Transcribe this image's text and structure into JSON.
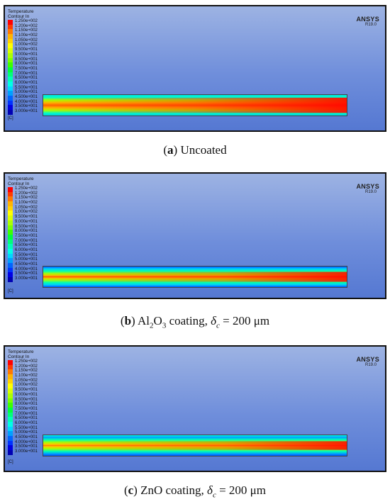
{
  "legend": {
    "title_line1": "Temperature",
    "title_line2": "Contour In",
    "unit": "[C]",
    "levels": [
      "1.250e+002",
      "1.200e+002",
      "1.150e+002",
      "1.100e+002",
      "1.050e+002",
      "1.000e+002",
      "9.500e+001",
      "9.000e+001",
      "8.500e+001",
      "8.000e+001",
      "7.500e+001",
      "7.000e+001",
      "6.500e+001",
      "6.000e+001",
      "5.500e+001",
      "5.000e+001",
      "4.500e+001",
      "4.000e+001",
      "3.500e+001",
      "3.000e+001"
    ],
    "colors": [
      "#ff0000",
      "#ff3c00",
      "#ff7800",
      "#ffb400",
      "#ffd200",
      "#ffff00",
      "#d7ff00",
      "#aaff00",
      "#78ff00",
      "#3cff00",
      "#00ff3c",
      "#00ff78",
      "#00ffb4",
      "#00ffe6",
      "#00d7ff",
      "#00a0ff",
      "#0064ff",
      "#0032ff",
      "#0000e6",
      "#0000b4"
    ]
  },
  "ansys": {
    "logo": "ANSYS",
    "version": "R19.0"
  },
  "panels": [
    {
      "caption_letter": "a",
      "caption_text": "Uncoated"
    },
    {
      "caption_letter": "b",
      "caption_text": "coating, "
    },
    {
      "caption_letter": "c",
      "caption_text": "ZnO coating, "
    }
  ],
  "caption_b_formula": {
    "al": "Al",
    "two": "2",
    "o": "O",
    "three": "3"
  },
  "caption_delta": {
    "symbol": "δ",
    "sub": "c",
    "value": " = 200 μm"
  },
  "colors": {
    "background_top": "#9db3e3",
    "background_bottom": "#5578d2"
  }
}
